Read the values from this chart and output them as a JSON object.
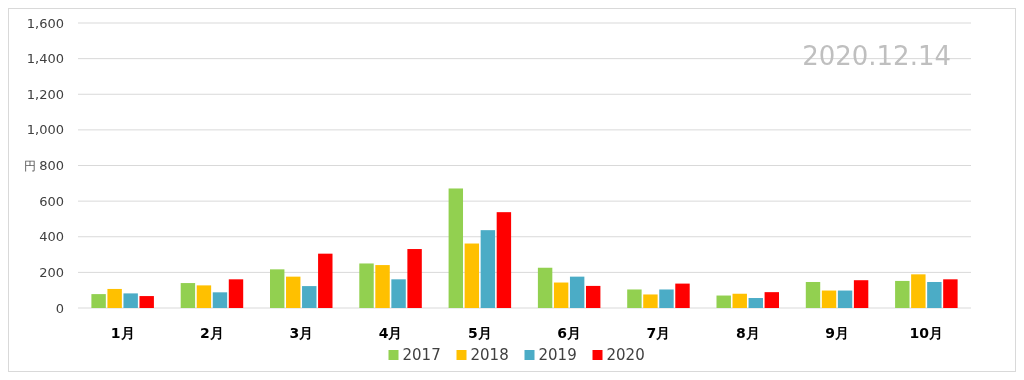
{
  "chart_data": {
    "type": "bar",
    "ylabel": "円",
    "categories": [
      "1月",
      "2月",
      "3月",
      "4月",
      "5月",
      "6月",
      "7月",
      "8月",
      "9月",
      "10月"
    ],
    "series": [
      {
        "name": "2017",
        "color": "#92d050",
        "values": [
          78,
          140,
          217,
          250,
          671,
          226,
          104,
          70,
          146,
          152
        ]
      },
      {
        "name": "2018",
        "color": "#ffc000",
        "values": [
          107,
          127,
          176,
          241,
          362,
          143,
          76,
          80,
          98,
          189
        ]
      },
      {
        "name": "2019",
        "color": "#4bacc6",
        "values": [
          82,
          88,
          123,
          161,
          437,
          176,
          104,
          56,
          98,
          146
        ]
      },
      {
        "name": "2020",
        "color": "#ff0000",
        "values": [
          67,
          161,
          305,
          331,
          538,
          124,
          137,
          89,
          156,
          161
        ]
      }
    ],
    "ylim": [
      0,
      1600
    ],
    "yticks": [
      {
        "value": 0,
        "label": "0"
      },
      {
        "value": 200,
        "label": "200"
      },
      {
        "value": 400,
        "label": "400"
      },
      {
        "value": 600,
        "label": "600"
      },
      {
        "value": 800,
        "label": "800"
      },
      {
        "value": 1000,
        "label": "1,000"
      },
      {
        "value": 1200,
        "label": "1,200"
      },
      {
        "value": 1400,
        "label": "1,400"
      },
      {
        "value": 1600,
        "label": "1,600"
      }
    ],
    "grid": "y",
    "legend": "bottom",
    "annotations": [
      "2020.12.14"
    ]
  }
}
